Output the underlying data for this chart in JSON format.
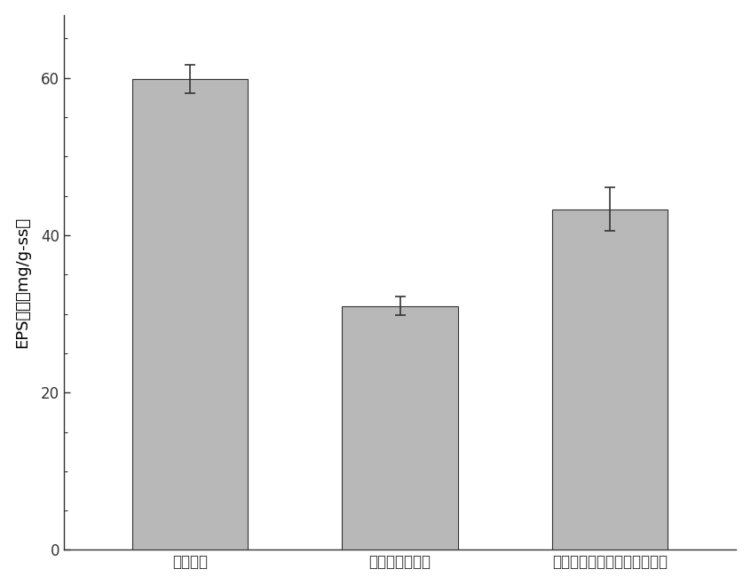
{
  "categories": [
    "厘氧污泥",
    "厘氧氨氧化污泥",
    "厘氧氨氧化污泥（传统方法）"
  ],
  "values": [
    59.8,
    31.0,
    43.3
  ],
  "errors": [
    1.8,
    1.2,
    2.8
  ],
  "bar_color": "#b8b8b8",
  "bar_edgecolor": "#333333",
  "ylabel": "EPS总量（mg/g-ss）",
  "ylim": [
    0,
    68
  ],
  "yticks": [
    0,
    20,
    40,
    60
  ],
  "bar_width": 0.55,
  "x_positions": [
    0,
    1,
    2
  ],
  "background_color": "#ffffff",
  "tick_fontsize": 12,
  "label_fontsize": 13
}
